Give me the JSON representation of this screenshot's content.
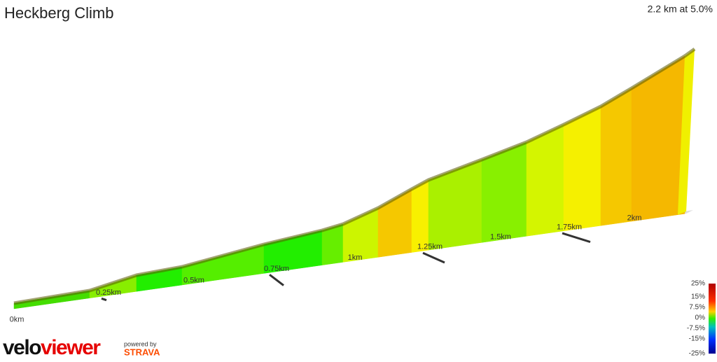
{
  "header": {
    "title": "Heckberg Climb",
    "summary": "2.2 km at 5.0%"
  },
  "distance_labels": [
    "0km",
    "0.25km",
    "0.5km",
    "0.75km",
    "1km",
    "1.25km",
    "1.5km",
    "1.75km",
    "2km"
  ],
  "legend": {
    "labels": [
      "25%",
      "15%",
      "7.5%",
      "0%",
      "-7.5%",
      "-15%",
      "-25%"
    ]
  },
  "footer": {
    "brand_velo": "velo",
    "brand_viewer": "viewer",
    "powered_by": "powered by",
    "strava": "STRAVA"
  }
}
